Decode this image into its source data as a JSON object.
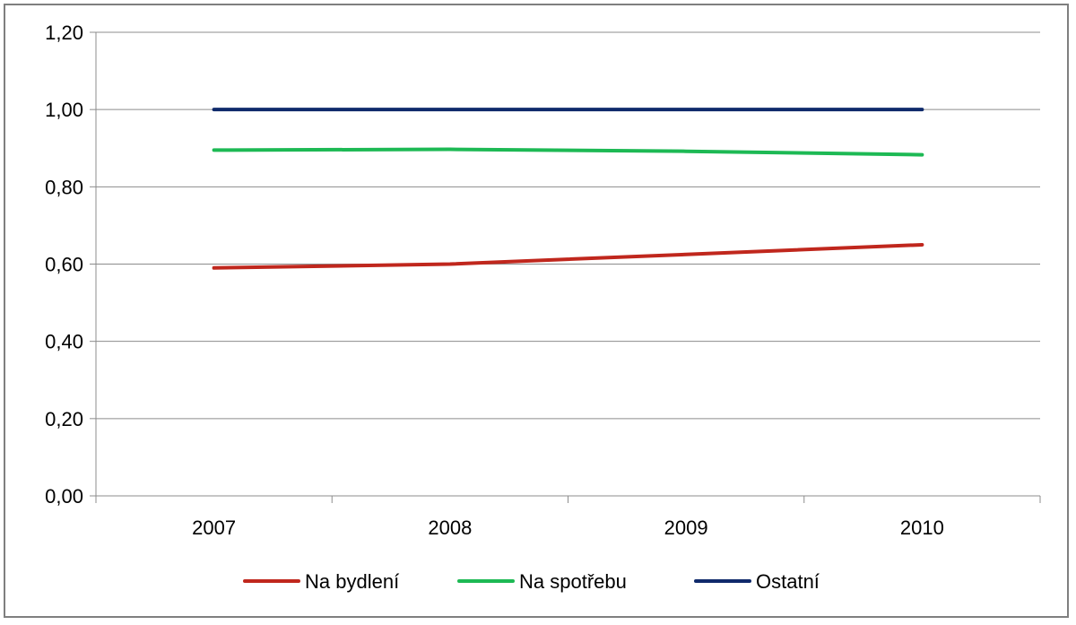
{
  "chart_data": {
    "type": "line",
    "title": "",
    "xlabel": "",
    "ylabel": "",
    "categories": [
      "2007",
      "2008",
      "2009",
      "2010"
    ],
    "ylim": [
      0,
      1.2
    ],
    "yticks": [
      "0,00",
      "0,20",
      "0,40",
      "0,60",
      "0,80",
      "1,00",
      "1,20"
    ],
    "ytick_values": [
      0,
      0.2,
      0.4,
      0.6,
      0.8,
      1.0,
      1.2
    ],
    "grid": true,
    "legend_position": "bottom",
    "series": [
      {
        "name": "Na bydlení",
        "color": "#c0271d",
        "values": [
          0.59,
          0.6,
          0.625,
          0.65
        ]
      },
      {
        "name": "Na spotřebu",
        "color": "#1db954",
        "values": [
          0.895,
          0.897,
          0.892,
          0.883
        ]
      },
      {
        "name": "Ostatní",
        "color": "#0f2a6b",
        "values": [
          1.0,
          1.0,
          1.0,
          1.0
        ]
      }
    ]
  }
}
